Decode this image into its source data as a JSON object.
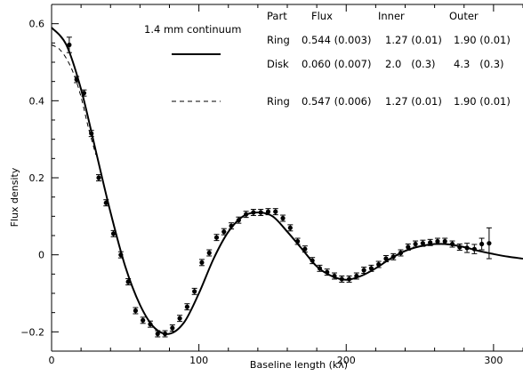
{
  "chart_data": {
    "type": "scatter",
    "title": "",
    "xlabel": "Baseline length (kλ)",
    "ylabel": "Flux density",
    "xlim": [
      0,
      320
    ],
    "ylim": [
      -0.25,
      0.65
    ],
    "xticks": [
      0,
      100,
      200,
      300
    ],
    "yticks": [
      -0.2,
      0,
      0.2,
      0.4,
      0.6
    ],
    "tick_labels_x": [
      "0",
      "100",
      "200",
      "300"
    ],
    "tick_labels_y": [
      "−0.2",
      "0",
      "0.2",
      "0.4",
      "0.6"
    ],
    "grid": false,
    "legend": {
      "title": "1.4 mm continuum",
      "placement": "top-right",
      "header": [
        "Part",
        "Flux",
        "Inner",
        "Outer"
      ],
      "rows": [
        [
          "Ring",
          "0.544 (0.003)",
          "1.27 (0.01)",
          "1.90 (0.01)"
        ],
        [
          "Disk",
          "0.060 (0.007)",
          "2.0   (0.3)",
          "4.3   (0.3)"
        ],
        [
          "Ring",
          "0.547 (0.006)",
          "1.27 (0.01)",
          "1.90 (0.01)"
        ]
      ]
    },
    "series": [
      {
        "style": "points-with-error-bars",
        "x": [
          12,
          17,
          22,
          27,
          32,
          37,
          42,
          47,
          52,
          57,
          62,
          67,
          72,
          77,
          82,
          87,
          92,
          97,
          102,
          107,
          112,
          117,
          122,
          127,
          132,
          137,
          142,
          147,
          152,
          157,
          162,
          167,
          172,
          177,
          182,
          187,
          192,
          197,
          202,
          207,
          212,
          217,
          222,
          227,
          232,
          237,
          242,
          247,
          252,
          257,
          262,
          267,
          272,
          277,
          282,
          287,
          292,
          297
        ],
        "y": [
          0.545,
          0.455,
          0.42,
          0.315,
          0.2,
          0.135,
          0.055,
          0.0,
          -0.07,
          -0.145,
          -0.17,
          -0.18,
          -0.205,
          -0.205,
          -0.19,
          -0.165,
          -0.135,
          -0.095,
          -0.02,
          0.005,
          0.045,
          0.06,
          0.075,
          0.09,
          0.105,
          0.11,
          0.11,
          0.112,
          0.112,
          0.095,
          0.07,
          0.035,
          0.015,
          -0.015,
          -0.035,
          -0.045,
          -0.055,
          -0.063,
          -0.063,
          -0.055,
          -0.04,
          -0.035,
          -0.025,
          -0.01,
          -0.005,
          0.005,
          0.02,
          0.028,
          0.03,
          0.032,
          0.035,
          0.035,
          0.028,
          0.02,
          0.018,
          0.015,
          0.028,
          0.03
        ],
        "err": [
          0.02,
          0.008,
          0.008,
          0.008,
          0.008,
          0.008,
          0.008,
          0.008,
          0.008,
          0.008,
          0.008,
          0.008,
          0.008,
          0.008,
          0.008,
          0.008,
          0.008,
          0.008,
          0.008,
          0.008,
          0.008,
          0.008,
          0.008,
          0.008,
          0.008,
          0.008,
          0.008,
          0.008,
          0.008,
          0.008,
          0.008,
          0.008,
          0.008,
          0.008,
          0.008,
          0.008,
          0.008,
          0.008,
          0.008,
          0.008,
          0.008,
          0.008,
          0.008,
          0.008,
          0.008,
          0.008,
          0.008,
          0.008,
          0.008,
          0.008,
          0.008,
          0.008,
          0.008,
          0.008,
          0.012,
          0.012,
          0.015,
          0.04
        ]
      },
      {
        "style": "solid",
        "x": [
          0,
          10,
          20,
          30,
          40,
          50,
          60,
          70,
          80,
          90,
          100,
          110,
          120,
          130,
          140,
          150,
          160,
          170,
          180,
          190,
          200,
          210,
          220,
          230,
          240,
          250,
          260,
          270,
          280,
          290,
          300,
          310,
          320
        ],
        "y": [
          0.59,
          0.545,
          0.43,
          0.27,
          0.11,
          -0.03,
          -0.13,
          -0.19,
          -0.205,
          -0.175,
          -0.1,
          -0.01,
          0.06,
          0.1,
          0.11,
          0.1,
          0.06,
          0.015,
          -0.03,
          -0.055,
          -0.065,
          -0.055,
          -0.035,
          -0.01,
          0.01,
          0.022,
          0.028,
          0.027,
          0.02,
          0.01,
          0.002,
          -0.005,
          -0.01
        ]
      },
      {
        "style": "dashed",
        "x": [
          0,
          5,
          10,
          15,
          20,
          25,
          30
        ],
        "y": [
          0.545,
          0.535,
          0.51,
          0.47,
          0.41,
          0.33,
          0.26
        ]
      }
    ]
  }
}
